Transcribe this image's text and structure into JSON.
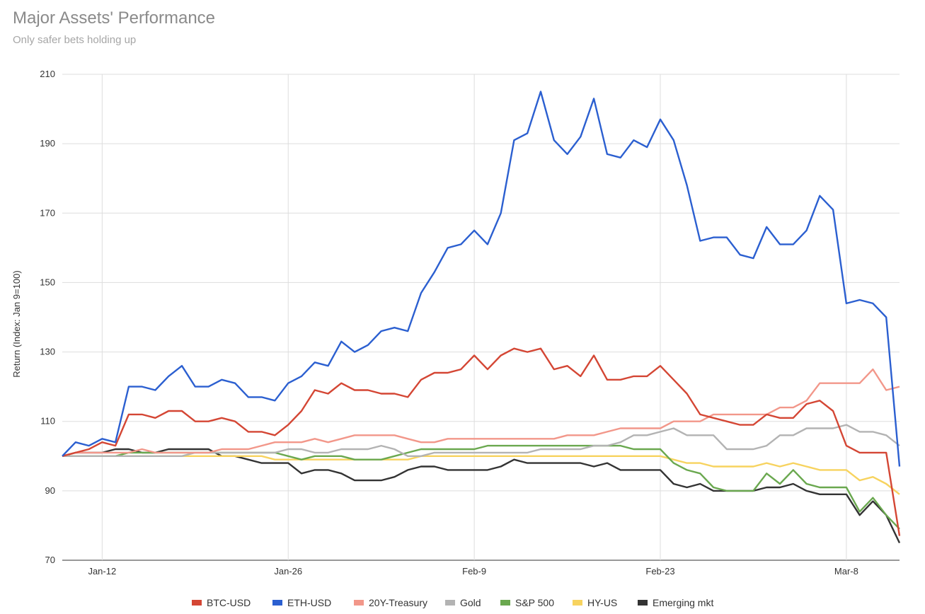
{
  "chart_data": {
    "type": "line",
    "title": "Major Assets' Performance",
    "subtitle": "Only safer bets holding up",
    "xlabel": "",
    "ylabel": "Return (Index: Jan 9=100)",
    "ylim": [
      70,
      210
    ],
    "yticks": [
      70,
      90,
      110,
      130,
      150,
      170,
      190,
      210
    ],
    "x_start": "Jan 9",
    "x_end": "Mar 13",
    "xticks": [
      {
        "label": "Jan-12",
        "day": 3
      },
      {
        "label": "Jan-26",
        "day": 17
      },
      {
        "label": "Feb-9",
        "day": 31
      },
      {
        "label": "Feb-23",
        "day": 45
      },
      {
        "label": "Mar-8",
        "day": 59
      }
    ],
    "grid": true,
    "legend_position": "bottom",
    "series": [
      {
        "name": "BTC-USD",
        "color": "#d44634",
        "values": [
          100,
          101,
          102,
          104,
          103,
          112,
          112,
          111,
          113,
          113,
          110,
          110,
          111,
          110,
          107,
          107,
          106,
          109,
          113,
          119,
          118,
          121,
          119,
          119,
          118,
          118,
          117,
          122,
          124,
          124,
          125,
          129,
          125,
          129,
          131,
          130,
          131,
          125,
          126,
          123,
          129,
          122,
          122,
          123,
          123,
          126,
          122,
          118,
          112,
          111,
          110,
          109,
          109,
          112,
          111,
          111,
          115,
          116,
          113,
          103,
          101,
          101,
          101,
          77
        ]
      },
      {
        "name": "ETH-USD",
        "color": "#2b5fd0",
        "values": [
          100,
          104,
          103,
          105,
          104,
          120,
          120,
          119,
          123,
          126,
          120,
          120,
          122,
          121,
          117,
          117,
          116,
          121,
          123,
          127,
          126,
          133,
          130,
          132,
          136,
          137,
          136,
          147,
          153,
          160,
          161,
          165,
          161,
          170,
          191,
          193,
          205,
          191,
          187,
          192,
          203,
          187,
          186,
          191,
          189,
          197,
          191,
          178,
          162,
          163,
          163,
          158,
          157,
          166,
          161,
          161,
          165,
          175,
          171,
          144,
          145,
          144,
          140,
          97
        ]
      },
      {
        "name": "20Y-Treasury",
        "color": "#f2978a",
        "values": [
          100,
          101,
          101,
          101,
          101,
          101,
          102,
          101,
          101,
          101,
          101,
          101,
          102,
          102,
          102,
          103,
          104,
          104,
          104,
          105,
          104,
          105,
          106,
          106,
          106,
          106,
          105,
          104,
          104,
          105,
          105,
          105,
          105,
          105,
          105,
          105,
          105,
          105,
          106,
          106,
          106,
          107,
          108,
          108,
          108,
          108,
          110,
          110,
          110,
          112,
          112,
          112,
          112,
          112,
          114,
          114,
          116,
          121,
          121,
          121,
          121,
          125,
          119,
          120
        ]
      },
      {
        "name": "Gold",
        "color": "#b3b3b3",
        "values": [
          100,
          100,
          100,
          100,
          100,
          100,
          100,
          100,
          100,
          100,
          101,
          101,
          101,
          101,
          101,
          101,
          101,
          102,
          102,
          101,
          101,
          102,
          102,
          102,
          103,
          102,
          100,
          100,
          101,
          101,
          101,
          101,
          101,
          101,
          101,
          101,
          102,
          102,
          102,
          102,
          103,
          103,
          104,
          106,
          106,
          107,
          108,
          106,
          106,
          106,
          102,
          102,
          102,
          103,
          106,
          106,
          108,
          108,
          108,
          109,
          107,
          107,
          106,
          103
        ]
      },
      {
        "name": "S&P 500",
        "color": "#6aa84f",
        "values": [
          100,
          100,
          100,
          100,
          100,
          101,
          101,
          101,
          101,
          101,
          101,
          101,
          101,
          101,
          101,
          101,
          101,
          100,
          99,
          100,
          100,
          100,
          99,
          99,
          99,
          100,
          101,
          102,
          102,
          102,
          102,
          102,
          103,
          103,
          103,
          103,
          103,
          103,
          103,
          103,
          103,
          103,
          103,
          102,
          102,
          102,
          98,
          96,
          95,
          91,
          90,
          90,
          90,
          95,
          92,
          96,
          92,
          91,
          91,
          91,
          84,
          88,
          83,
          79
        ]
      },
      {
        "name": "HY-US",
        "color": "#f7d35f",
        "values": [
          100,
          100,
          100,
          100,
          100,
          100,
          100,
          100,
          100,
          100,
          100,
          100,
          100,
          100,
          100,
          100,
          99,
          99,
          99,
          99,
          99,
          99,
          99,
          99,
          99,
          99,
          99,
          100,
          100,
          100,
          100,
          100,
          100,
          100,
          100,
          100,
          100,
          100,
          100,
          100,
          100,
          100,
          100,
          100,
          100,
          100,
          99,
          98,
          98,
          97,
          97,
          97,
          97,
          98,
          97,
          98,
          97,
          96,
          96,
          96,
          93,
          94,
          92,
          89
        ]
      },
      {
        "name": "Emerging mkt",
        "color": "#333333",
        "values": [
          100,
          101,
          101,
          101,
          102,
          102,
          101,
          101,
          102,
          102,
          102,
          102,
          100,
          100,
          99,
          98,
          98,
          98,
          95,
          96,
          96,
          95,
          93,
          93,
          93,
          94,
          96,
          97,
          97,
          96,
          96,
          96,
          96,
          97,
          99,
          98,
          98,
          98,
          98,
          98,
          97,
          98,
          96,
          96,
          96,
          96,
          92,
          91,
          92,
          90,
          90,
          90,
          90,
          91,
          91,
          92,
          90,
          89,
          89,
          89,
          83,
          87,
          83,
          75
        ]
      }
    ]
  }
}
